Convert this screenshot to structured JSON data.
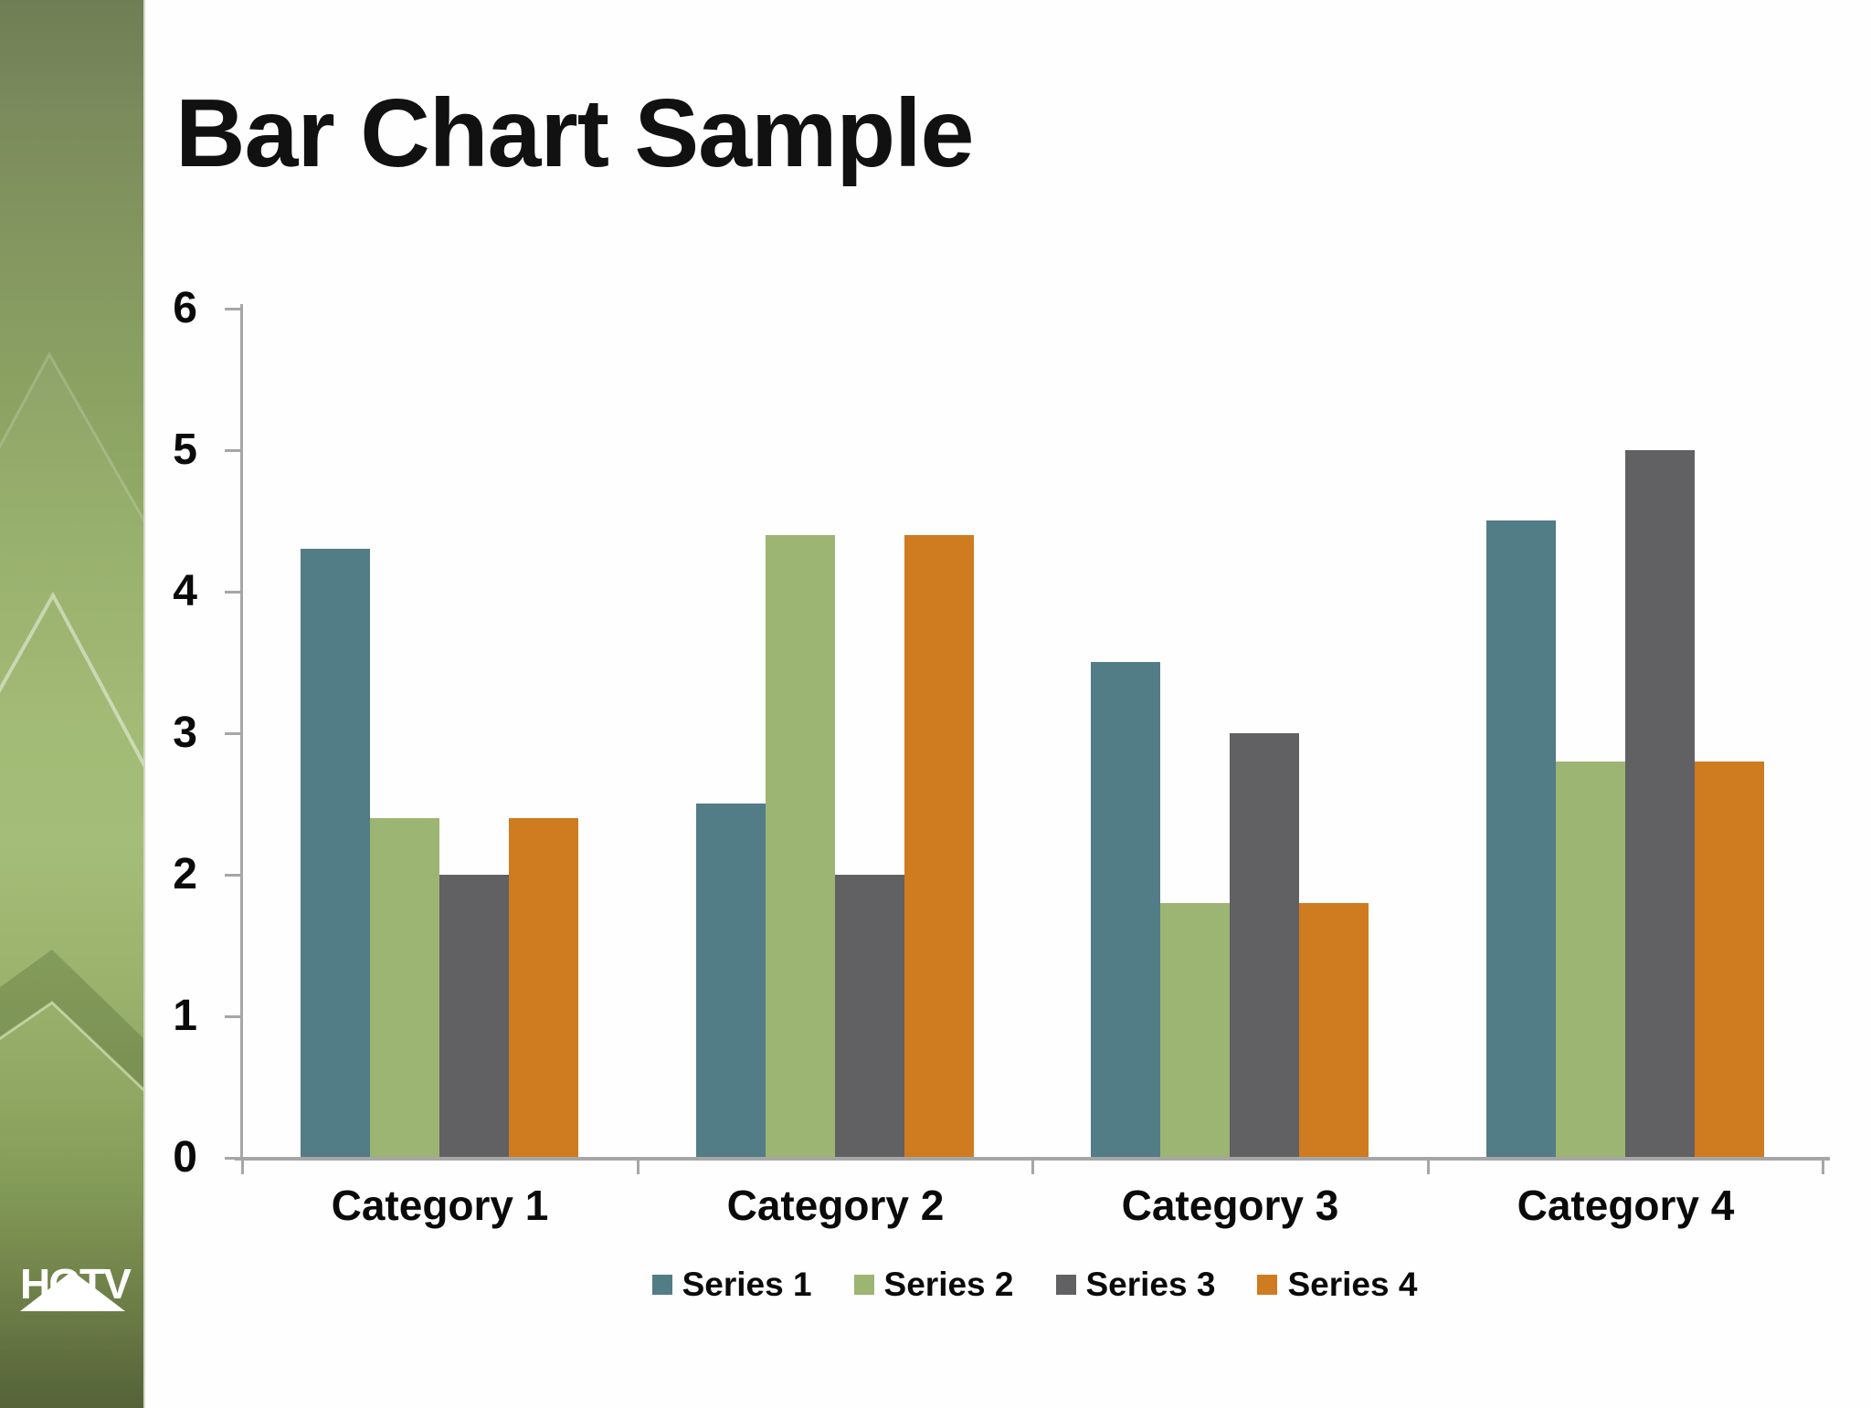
{
  "slide": {
    "title": "Bar Chart Sample",
    "logo_text": "HGTV"
  },
  "chart_data": {
    "type": "bar",
    "title": "Bar Chart Sample",
    "categories": [
      "Category 1",
      "Category 2",
      "Category 3",
      "Category 4"
    ],
    "series": [
      {
        "name": "Series 1",
        "color": "#527c86",
        "values": [
          4.3,
          2.5,
          3.5,
          4.5
        ]
      },
      {
        "name": "Series 2",
        "color": "#9cb572",
        "values": [
          2.4,
          4.4,
          1.8,
          2.8
        ]
      },
      {
        "name": "Series 3",
        "color": "#616063",
        "values": [
          2.0,
          2.0,
          3.0,
          5.0
        ]
      },
      {
        "name": "Series 4",
        "color": "#cf7b1f",
        "values": [
          2.4,
          4.4,
          1.8,
          2.8
        ]
      }
    ],
    "y_axis": {
      "min": 0,
      "max": 6,
      "step": 1,
      "tick_labels": [
        "0",
        "1",
        "2",
        "3",
        "4",
        "5",
        "6"
      ]
    },
    "xlabel": "",
    "ylabel": "",
    "grid": false,
    "legend_position": "bottom",
    "axis_color": "#a6a6a6",
    "text_color": "#0a0a0a",
    "background": "#fefefe"
  }
}
